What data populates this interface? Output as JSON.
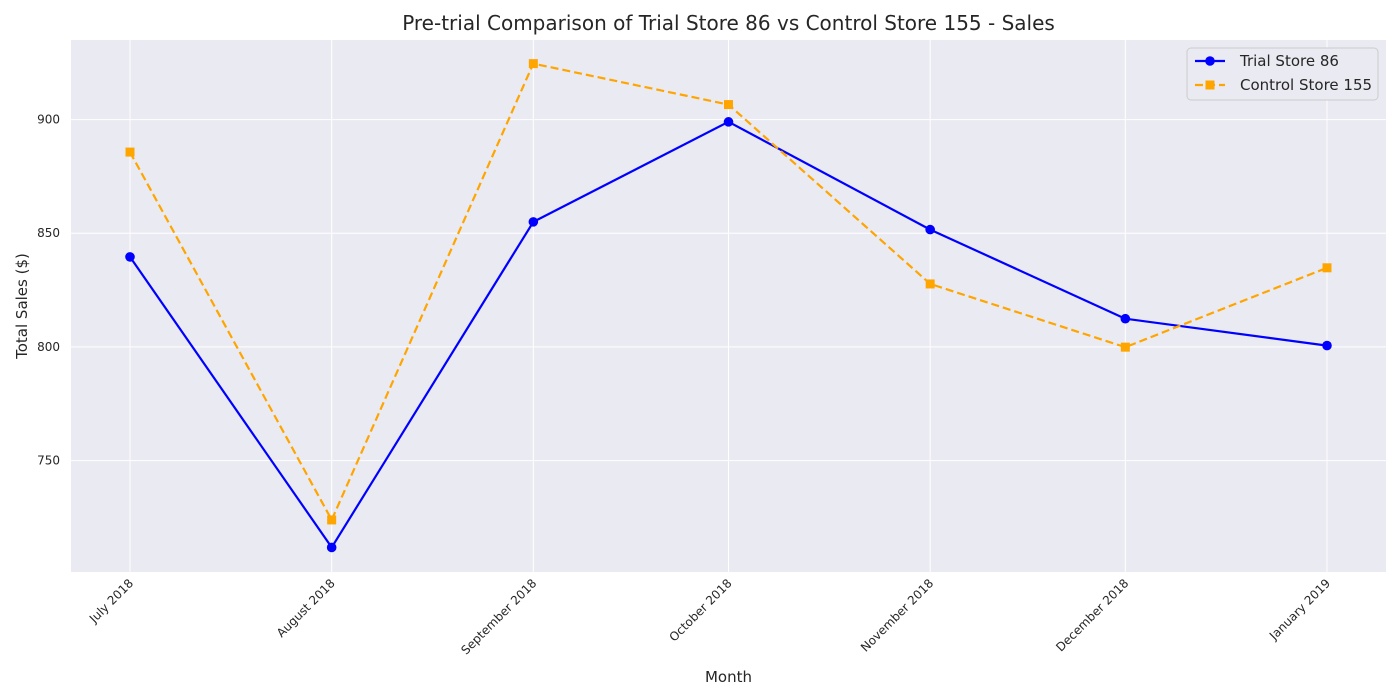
{
  "chart_data": {
    "type": "line",
    "title": "Pre-trial Comparison of Trial Store 86 vs Control Store 155 - Sales",
    "xlabel": "Month",
    "ylabel": "Total Sales ($)",
    "categories": [
      "July 2018",
      "August 2018",
      "September 2018",
      "October 2018",
      "November 2018",
      "December 2018",
      "January 2019"
    ],
    "x_dates": [
      "2018-07-01",
      "2018-08-01",
      "2018-09-01",
      "2018-10-01",
      "2018-11-01",
      "2018-12-01",
      "2019-01-01"
    ],
    "yticks": [
      750,
      800,
      850,
      900
    ],
    "ylim": [
      701,
      935
    ],
    "grid": true,
    "legend_position": "top-right",
    "series": [
      {
        "name": "Trial Store 86",
        "values": [
          839.6,
          711.8,
          855.0,
          899.0,
          851.6,
          812.4,
          800.6
        ],
        "color": "#0000ff",
        "line_style": "solid",
        "marker": "circle"
      },
      {
        "name": "Control Store 155",
        "values": [
          885.7,
          723.9,
          924.6,
          906.6,
          827.7,
          799.9,
          834.8
        ],
        "color": "#ffa500",
        "line_style": "dashed",
        "marker": "square"
      }
    ]
  }
}
